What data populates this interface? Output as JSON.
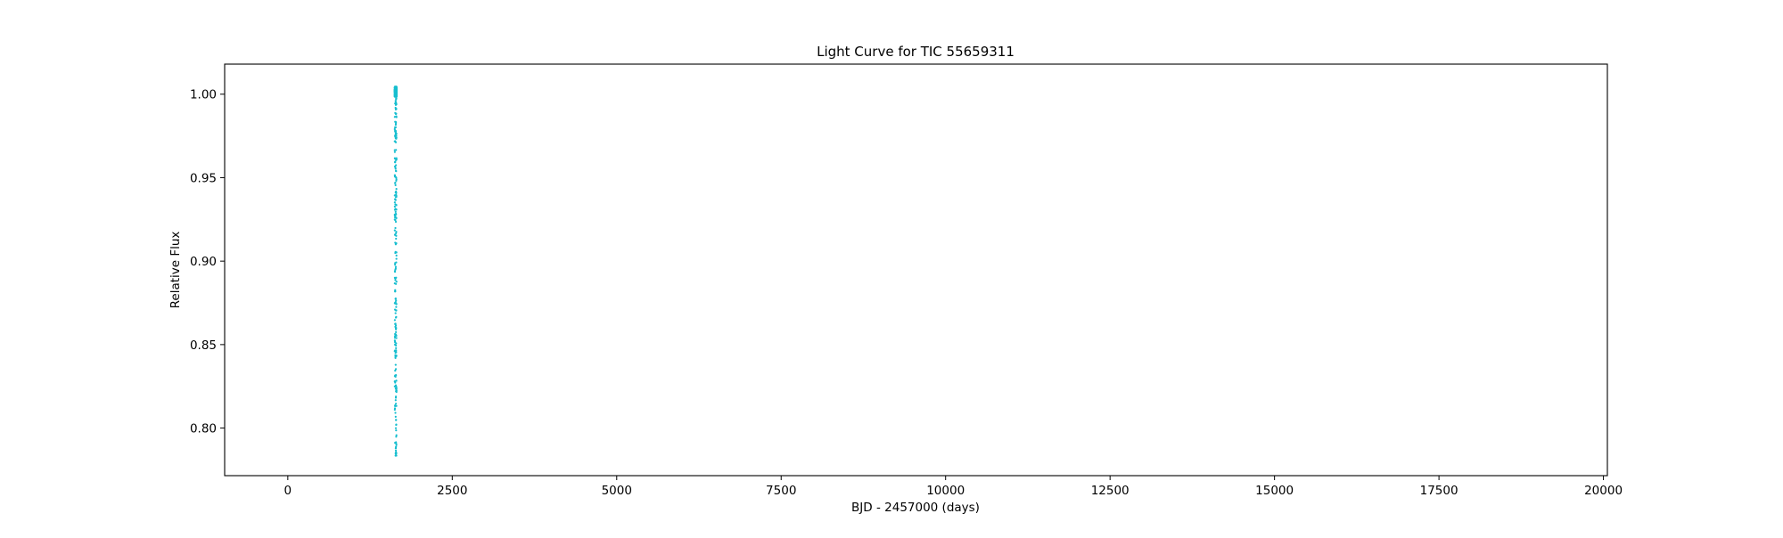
{
  "chart_data": {
    "type": "scatter",
    "title": "Light Curve for TIC 55659311",
    "xlabel": "BJD - 2457000 (days)",
    "ylabel": "Relative Flux",
    "xlim": [
      -960,
      20060
    ],
    "ylim": [
      0.7715,
      1.018
    ],
    "xticks": [
      0,
      2500,
      5000,
      7500,
      10000,
      12500,
      15000,
      17500,
      20000
    ],
    "yticks": [
      0.8,
      0.85,
      0.9,
      0.95,
      1.0
    ],
    "grid": false,
    "legend": "none",
    "colors": {
      "points": "#17becf",
      "axes": "#000000"
    },
    "series": [
      {
        "x_range": [
          1625.5,
          1653.0
        ],
        "baseline": 1.0,
        "baseline_scatter": 0.003,
        "min_flux": 0.7835,
        "points_count_shown": 1
      }
    ]
  }
}
